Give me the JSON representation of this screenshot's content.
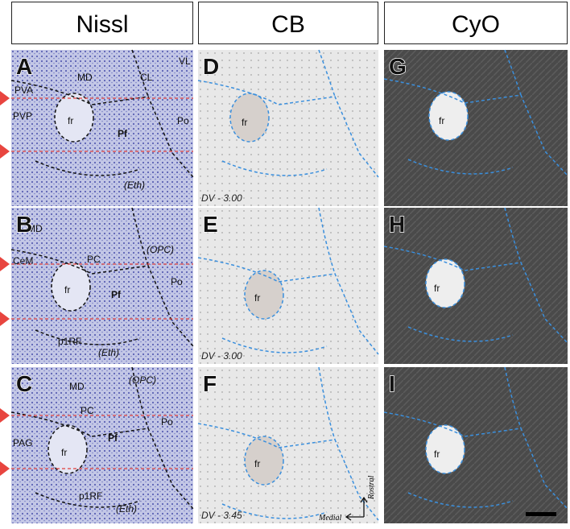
{
  "headers": [
    "Nissl",
    "CB",
    "CyO"
  ],
  "panels": [
    {
      "letter": "A",
      "labels": [
        "MD",
        "CL",
        "VL",
        "PVA",
        "PVP",
        "fr",
        "Pf",
        "Po",
        "(Eth)"
      ]
    },
    {
      "letter": "B",
      "labels": [
        "MD",
        "CeM",
        "PC",
        "(OPC)",
        "fr",
        "Pf",
        "Po",
        "p1RF",
        "(Eth)"
      ]
    },
    {
      "letter": "C",
      "labels": [
        "MD",
        "(OPC)",
        "PC",
        "PAG",
        "fr",
        "Pf",
        "Po",
        "p1RF",
        "(Eth)"
      ]
    },
    {
      "letter": "D",
      "labels": [
        "fr"
      ],
      "dv": "DV - 3.00"
    },
    {
      "letter": "E",
      "labels": [
        "fr"
      ],
      "dv": "DV - 3.00"
    },
    {
      "letter": "F",
      "labels": [
        "fr"
      ],
      "dv": "DV - 3.45",
      "axes": [
        "Rostral",
        "Medial"
      ]
    },
    {
      "letter": "G",
      "labels": [
        "fr"
      ]
    },
    {
      "letter": "H",
      "labels": [
        "fr"
      ]
    },
    {
      "letter": "I",
      "labels": [
        "fr"
      ]
    }
  ]
}
